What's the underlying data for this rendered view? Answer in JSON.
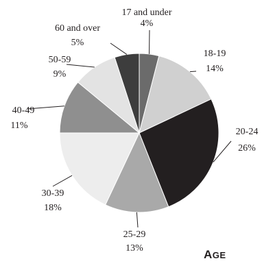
{
  "chart_data": {
    "type": "pie",
    "title": "Age",
    "categories": [
      "17 and under",
      "18-19",
      "20-24",
      "25-29",
      "30-39",
      "40-49",
      "50-59",
      "60 and over"
    ],
    "values": [
      4,
      14,
      26,
      13,
      18,
      11,
      9,
      5
    ],
    "value_labels": [
      "4%",
      "14%",
      "26%",
      "13%",
      "18%",
      "11%",
      "9%",
      "5%"
    ],
    "colors": [
      "#6b6b6b",
      "#d0d0d0",
      "#231f20",
      "#a9a9a9",
      "#ededed",
      "#8f8f8f",
      "#e3e3e3",
      "#3d3d3d"
    ],
    "start_angle": "12 o'clock",
    "direction": "clockwise",
    "legend": "none"
  }
}
